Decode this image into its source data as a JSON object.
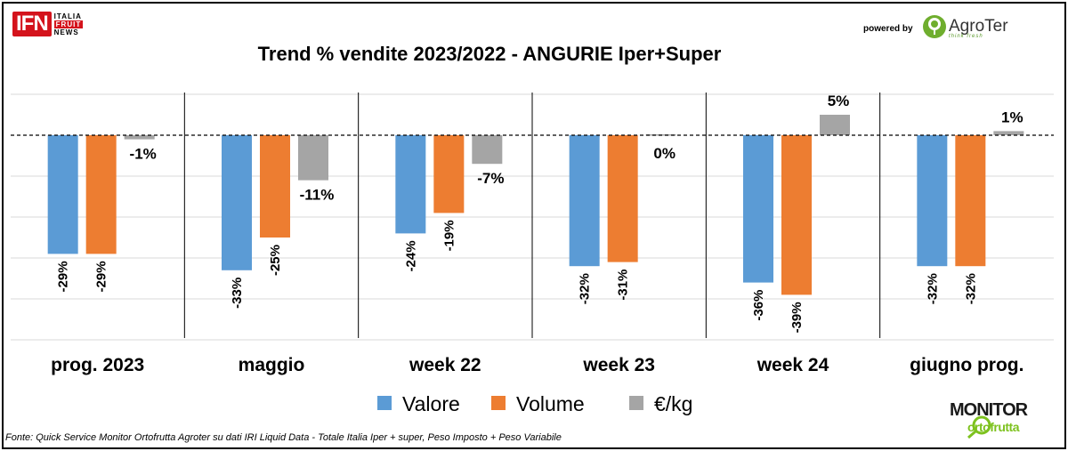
{
  "header": {
    "ifn_logo": "IFN",
    "ifn_lines": [
      "ITALIA",
      "FRUIT",
      "NEWS"
    ],
    "powered_by": "powered by",
    "agroter_name": "AgroTer",
    "agroter_tagline": "think fresh"
  },
  "colors": {
    "valore": "#5b9bd5",
    "volume": "#ed7d31",
    "price": "#a5a5a5"
  },
  "chart_data": {
    "type": "bar",
    "title": "Trend % vendite 2023/2022 - ANGURIE Iper+Super",
    "categories": [
      "prog. 2023",
      "maggio",
      "week 22",
      "week 23",
      "week 24",
      "giugno prog."
    ],
    "series": [
      {
        "name": "Valore",
        "values": [
          -29,
          -33,
          -24,
          -32,
          -36,
          -32
        ],
        "labels": [
          "-29%",
          "-33%",
          "-24%",
          "-32%",
          "-36%",
          "-32%"
        ]
      },
      {
        "name": "Volume",
        "values": [
          -29,
          -25,
          -19,
          -31,
          -39,
          -32
        ],
        "labels": [
          "-29%",
          "-25%",
          "-19%",
          "-31%",
          "-39%",
          "-32%"
        ]
      },
      {
        "name": "€/kg",
        "values": [
          -1,
          -11,
          -7,
          0,
          5,
          1
        ],
        "labels": [
          "-1%",
          "-11%",
          "-7%",
          "0%",
          "5%",
          "1%"
        ]
      }
    ],
    "ylim": [
      -50,
      10
    ],
    "grid": true,
    "legend": "bottom"
  },
  "footer": {
    "source": "Fonte: Quick Service Monitor Ortofrutta Agroter su dati IRI Liquid Data - Totale Italia Iper + super, Peso Imposto + Peso Variabile",
    "monitor_word": "MONITOR",
    "monitor_sub": "ortofrutta"
  }
}
